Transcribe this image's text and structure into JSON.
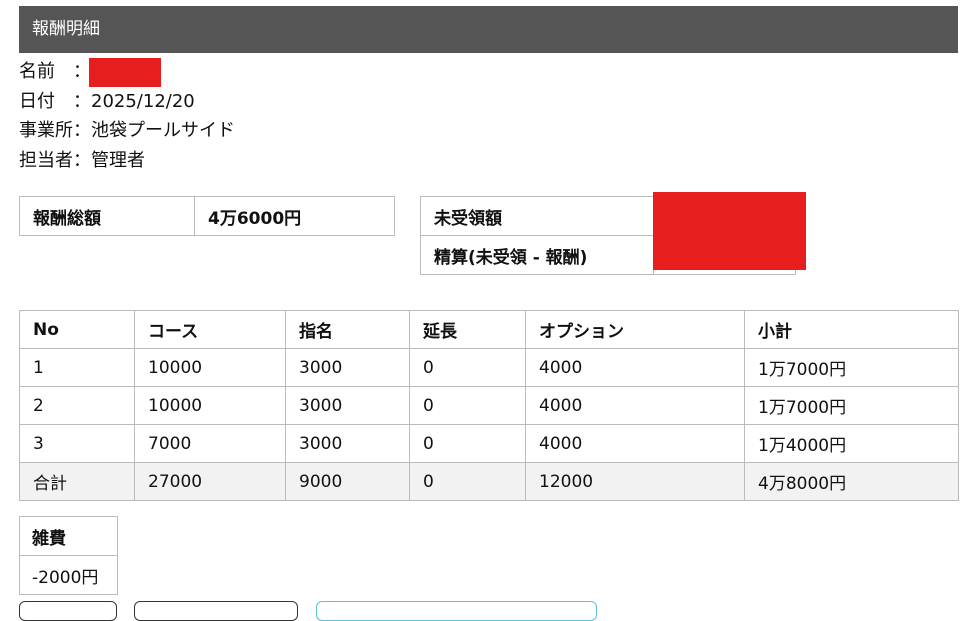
{
  "header": {
    "title": "報酬明細"
  },
  "info": {
    "name_label": "名前　：",
    "date_label": "日付　：",
    "date": "2025/12/20",
    "office_label": "事業所：",
    "office": "池袋プールサイド",
    "staff_label": "担当者：",
    "staff": "管理者"
  },
  "summary": {
    "total_label": "報酬総額",
    "total": "4万6000円",
    "unreceived_label": "未受領額",
    "settlement_label": "精算(未受領 - 報酬)"
  },
  "table": {
    "headers": [
      "No",
      "コース",
      "指名",
      "延長",
      "オプション",
      "小計"
    ],
    "rows": [
      [
        "1",
        "10000",
        "3000",
        "0",
        "4000",
        "1万7000円"
      ],
      [
        "2",
        "10000",
        "3000",
        "0",
        "4000",
        "1万7000円"
      ],
      [
        "3",
        "7000",
        "3000",
        "0",
        "4000",
        "1万4000円"
      ]
    ],
    "total": [
      "合計",
      "27000",
      "9000",
      "0",
      "12000",
      "4万8000円"
    ]
  },
  "misc": {
    "label": "雑費",
    "value": "-2000円"
  },
  "colors": {
    "header_bg": "#555555",
    "redaction": "#e61e1e",
    "accent_button_border": "#5bc0de"
  }
}
